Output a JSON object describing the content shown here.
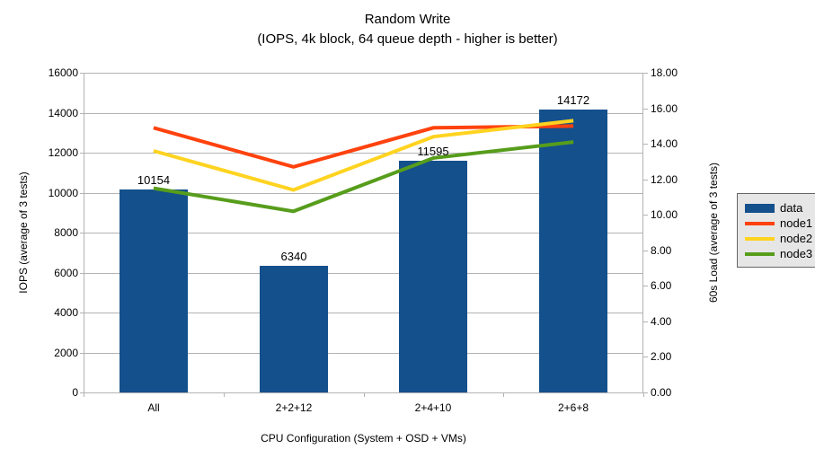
{
  "title": "Random Write",
  "subtitle": "(IOPS, 4k block, 64 queue depth - higher is better)",
  "chart_data": {
    "type": "bar+line",
    "categories": [
      "All",
      "2+2+12",
      "2+4+10",
      "2+6+8"
    ],
    "bar_series": {
      "name": "data",
      "axis": "left",
      "values": [
        10154,
        6340,
        11595,
        14172
      ],
      "data_labels": [
        "10154",
        "6340",
        "11595",
        "14172"
      ],
      "color": "#14508C"
    },
    "line_series": [
      {
        "name": "node1",
        "axis": "right",
        "values": [
          14.9,
          12.7,
          14.9,
          15.0
        ],
        "color": "#FF420E"
      },
      {
        "name": "node2",
        "axis": "right",
        "values": [
          13.6,
          11.4,
          14.4,
          15.3
        ],
        "color": "#FFD320"
      },
      {
        "name": "node3",
        "axis": "right",
        "values": [
          11.5,
          10.2,
          13.2,
          14.1
        ],
        "color": "#579D1C"
      }
    ],
    "left_axis": {
      "title": "IOPS (average of 3 tests)",
      "min": 0,
      "max": 16000,
      "step": 2000,
      "tick_labels": [
        "0",
        "2000",
        "4000",
        "6000",
        "8000",
        "10000",
        "12000",
        "14000",
        "16000"
      ]
    },
    "right_axis": {
      "title": "60s Load (average of 3 tests)",
      "min": 0,
      "max": 18,
      "step": 2,
      "tick_labels": [
        "0.00",
        "2.00",
        "4.00",
        "6.00",
        "8.00",
        "10.00",
        "12.00",
        "14.00",
        "16.00",
        "18.00"
      ]
    },
    "x_axis": {
      "title": "CPU Configuration (System + OSD + VMs)"
    },
    "legend": {
      "position": "right",
      "entries": [
        {
          "label": "data",
          "marker": "box",
          "color": "#14508C"
        },
        {
          "label": "node1",
          "marker": "line",
          "color": "#FF420E"
        },
        {
          "label": "node2",
          "marker": "line",
          "color": "#FFD320"
        },
        {
          "label": "node3",
          "marker": "line",
          "color": "#579D1C"
        }
      ]
    },
    "grid": true,
    "colors": {
      "gridline": "#B3B3B3",
      "axis_line": "#B3B3B3",
      "background": "#FFFFFF",
      "legend_background": "#E6E6E6",
      "text": "#000000"
    }
  }
}
